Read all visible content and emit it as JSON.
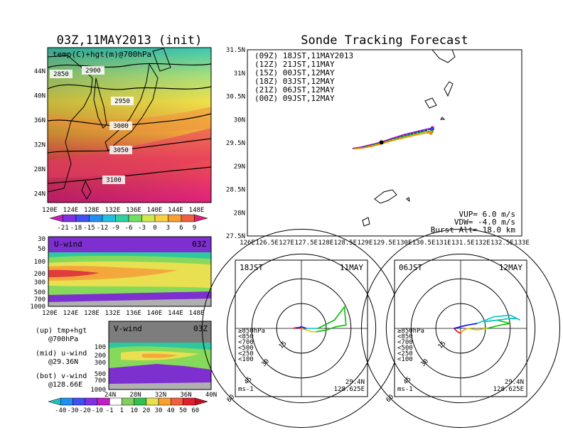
{
  "left": {
    "title": "03Z,11MAY2013 (init)",
    "top_panel": {
      "label": "temp(C)+hgt(m)@700hPa",
      "contour_labels": [
        "2850",
        "2900",
        "2950",
        "3000",
        "3050",
        "3100"
      ],
      "lat_ticks": [
        "44N",
        "40N",
        "36N",
        "32N",
        "28N",
        "24N"
      ],
      "lon_ticks": [
        "120E",
        "124E",
        "128E",
        "132E",
        "136E",
        "140E",
        "144E",
        "148E"
      ],
      "colorbar": [
        "-21",
        "-18",
        "-15",
        "-12",
        "-9",
        "-6",
        "-3",
        "0",
        "3",
        "6",
        "9"
      ]
    },
    "u_panel": {
      "label": "U-wind",
      "time": "03Z",
      "p_ticks": [
        "30",
        "50",
        "100",
        "200",
        "300",
        "500",
        "700",
        "1000"
      ],
      "lon_ticks": [
        "120E",
        "124E",
        "128E",
        "132E",
        "136E",
        "140E",
        "144E",
        "148E"
      ]
    },
    "v_panel": {
      "label": "V-wind",
      "time": "03Z",
      "p_ticks": [
        "100",
        "200",
        "300",
        "500",
        "700",
        "1000"
      ],
      "lat_ticks": [
        "24N",
        "28N",
        "32N",
        "36N",
        "40N"
      ],
      "colorbar": [
        "-40",
        "-30",
        "-20",
        "-10",
        "-1",
        "1",
        "10",
        "20",
        "30",
        "40",
        "50",
        "60"
      ]
    },
    "legend": [
      {
        "line1": "(up) tmp+hgt",
        "line2": "@700hPa"
      },
      {
        "line1": "(mid) u-wind",
        "line2": "@29.36N"
      },
      {
        "line1": "(bot) v-wind",
        "line2": "@128.66E"
      }
    ]
  },
  "track": {
    "title": "Sonde Tracking Forecast",
    "lat_ticks": [
      "31.5N",
      "31N",
      "30.5N",
      "30N",
      "29.5N",
      "29N",
      "28.5N",
      "28N",
      "27.5N"
    ],
    "lon_ticks": [
      "126E",
      "126.5E",
      "127E",
      "127.5E",
      "128E",
      "128.5E",
      "129E",
      "129.5E",
      "130E",
      "130.5E",
      "131E",
      "131.5E",
      "132E",
      "132.5E",
      "133E"
    ],
    "launch_label": "(09Z) 18JST,11MAY2013",
    "launch_color": "#000000",
    "entries": [
      {
        "label": "(12Z) 21JST,11MAY",
        "color": "#c000c0"
      },
      {
        "label": "(15Z) 00JST,12MAY",
        "color": "#2040ff"
      },
      {
        "label": "(18Z) 03JST,12MAY",
        "color": "#00b000"
      },
      {
        "label": "(21Z) 06JST,12MAY",
        "color": "#e0e000"
      },
      {
        "label": "(00Z) 09JST,12MAY",
        "color": "#ff8000"
      }
    ],
    "params": [
      "VUP= 6.0 m/s",
      "VDW= -4.0 m/s",
      "Burst Alt= 18.0 km"
    ]
  },
  "hodo_left": {
    "time": "18JST",
    "date": "11MAY",
    "rings": [
      "15",
      "30",
      "45",
      "60"
    ],
    "unit": "ms-1",
    "lat": "29.4N",
    "lon": "128.625E",
    "levels": [
      {
        "label": "≥850hPa",
        "color": "#ff0000"
      },
      {
        "label": "<850",
        "color": "#ffa000"
      },
      {
        "label": "<700",
        "color": "#d0d000"
      },
      {
        "label": "<500",
        "color": "#00c000"
      },
      {
        "label": "<250",
        "color": "#00c0c0"
      },
      {
        "label": "<100",
        "color": "#0000ff"
      }
    ]
  },
  "hodo_right": {
    "time": "06JST",
    "date": "12MAY",
    "rings": [
      "15",
      "30",
      "45",
      "60"
    ],
    "unit": "ms-1",
    "lat": "29.4N",
    "lon": "128.625E",
    "levels": [
      {
        "label": "≥850hPa",
        "color": "#ff0000"
      },
      {
        "label": "<850",
        "color": "#ffa000"
      },
      {
        "label": "<700",
        "color": "#d0d000"
      },
      {
        "label": "<500",
        "color": "#00c000"
      },
      {
        "label": "<250",
        "color": "#00c0c0"
      },
      {
        "label": "<100",
        "color": "#0000ff"
      }
    ]
  },
  "chart_data": [
    {
      "type": "line",
      "title": "Sonde Tracking Forecast",
      "xlabel": "",
      "ylabel": "",
      "xlim": [
        126,
        133
      ],
      "ylim": [
        27.5,
        31.5
      ],
      "launch_point": [
        129.42,
        29.51
      ],
      "series": [
        {
          "name": "(09Z) 18JST,11MAY2013",
          "x": [
            128.68,
            128.9,
            129.2,
            129.42,
            129.7,
            130.0,
            130.3,
            130.55,
            130.72
          ],
          "y": [
            29.38,
            29.4,
            29.45,
            29.51,
            29.58,
            29.65,
            29.72,
            29.77,
            29.8
          ]
        },
        {
          "name": "(12Z) 21JST,11MAY",
          "x": [
            128.68,
            128.9,
            129.2,
            129.42,
            129.7,
            130.0,
            130.3,
            130.55,
            130.72
          ],
          "y": [
            29.38,
            29.41,
            29.47,
            29.52,
            29.6,
            29.68,
            29.74,
            29.79,
            29.82
          ]
        },
        {
          "name": "(15Z) 00JST,12MAY",
          "x": [
            128.7,
            128.95,
            129.2,
            129.42,
            129.7,
            130.0,
            130.3,
            130.55,
            130.7
          ],
          "y": [
            29.38,
            29.41,
            29.46,
            29.51,
            29.58,
            29.66,
            29.73,
            29.78,
            29.79
          ]
        },
        {
          "name": "(18Z) 03JST,12MAY",
          "x": [
            128.72,
            128.95,
            129.2,
            129.42,
            129.7,
            130.0,
            130.3,
            130.55,
            130.7
          ],
          "y": [
            29.37,
            29.4,
            29.45,
            29.5,
            29.57,
            29.64,
            29.7,
            29.75,
            29.74
          ]
        },
        {
          "name": "(21Z) 06JST,12MAY",
          "x": [
            128.72,
            128.95,
            129.2,
            129.42,
            129.7,
            130.0,
            130.3,
            130.55,
            130.68
          ],
          "y": [
            29.37,
            29.39,
            29.44,
            29.49,
            29.56,
            29.62,
            29.68,
            29.72,
            29.72
          ]
        },
        {
          "name": "(00Z) 09JST,12MAY",
          "x": [
            128.72,
            128.95,
            129.2,
            129.42,
            129.7,
            130.0,
            130.3,
            130.55,
            130.68
          ],
          "y": [
            29.37,
            29.39,
            29.43,
            29.48,
            29.55,
            29.61,
            29.67,
            29.71,
            29.71
          ]
        }
      ]
    },
    {
      "type": "line",
      "title": "18JST 11MAY hodograph",
      "xlim": [
        -60,
        60
      ],
      "ylim": [
        -60,
        60
      ],
      "series": [
        {
          "name": "≥850hPa",
          "x": [
            -5,
            -3,
            0
          ],
          "y": [
            0,
            0.5,
            0
          ]
        },
        {
          "name": "<850",
          "x": [
            0,
            3
          ],
          "y": [
            0,
            -1
          ]
        },
        {
          "name": "<700",
          "x": [
            3,
            6,
            9
          ],
          "y": [
            -1,
            -2,
            -2
          ]
        },
        {
          "name": "<500",
          "x": [
            9,
            15,
            21,
            27,
            26,
            20,
            10
          ],
          "y": [
            -2,
            -1,
            1,
            2,
            13,
            5,
            0
          ]
        },
        {
          "name": "<250",
          "x": [
            10,
            6,
            3
          ],
          "y": [
            0,
            0,
            0
          ]
        },
        {
          "name": "<100",
          "x": [
            3,
            0,
            -3
          ],
          "y": [
            0,
            1,
            0
          ]
        }
      ]
    },
    {
      "type": "line",
      "title": "06JST 12MAY hodograph",
      "xlim": [
        -60,
        60
      ],
      "ylim": [
        -60,
        60
      ],
      "series": [
        {
          "name": "≥850hPa",
          "x": [
            -4,
            -2,
            0
          ],
          "y": [
            0,
            -2,
            -3
          ]
        },
        {
          "name": "<850",
          "x": [
            0,
            2,
            4
          ],
          "y": [
            -3,
            -1,
            0
          ]
        },
        {
          "name": "<700",
          "x": [
            4,
            10,
            16
          ],
          "y": [
            0,
            -1,
            0
          ]
        },
        {
          "name": "<500",
          "x": [
            16,
            24,
            30,
            22,
            14
          ],
          "y": [
            0,
            2,
            3,
            5,
            4
          ]
        },
        {
          "name": "<250",
          "x": [
            14,
            22,
            30,
            34,
            36,
            30,
            20,
            10
          ],
          "y": [
            4,
            5,
            6,
            6,
            5,
            8,
            7,
            3
          ]
        },
        {
          "name": "<100",
          "x": [
            10,
            4,
            0,
            -4
          ],
          "y": [
            3,
            2,
            1,
            0
          ]
        }
      ]
    }
  ]
}
